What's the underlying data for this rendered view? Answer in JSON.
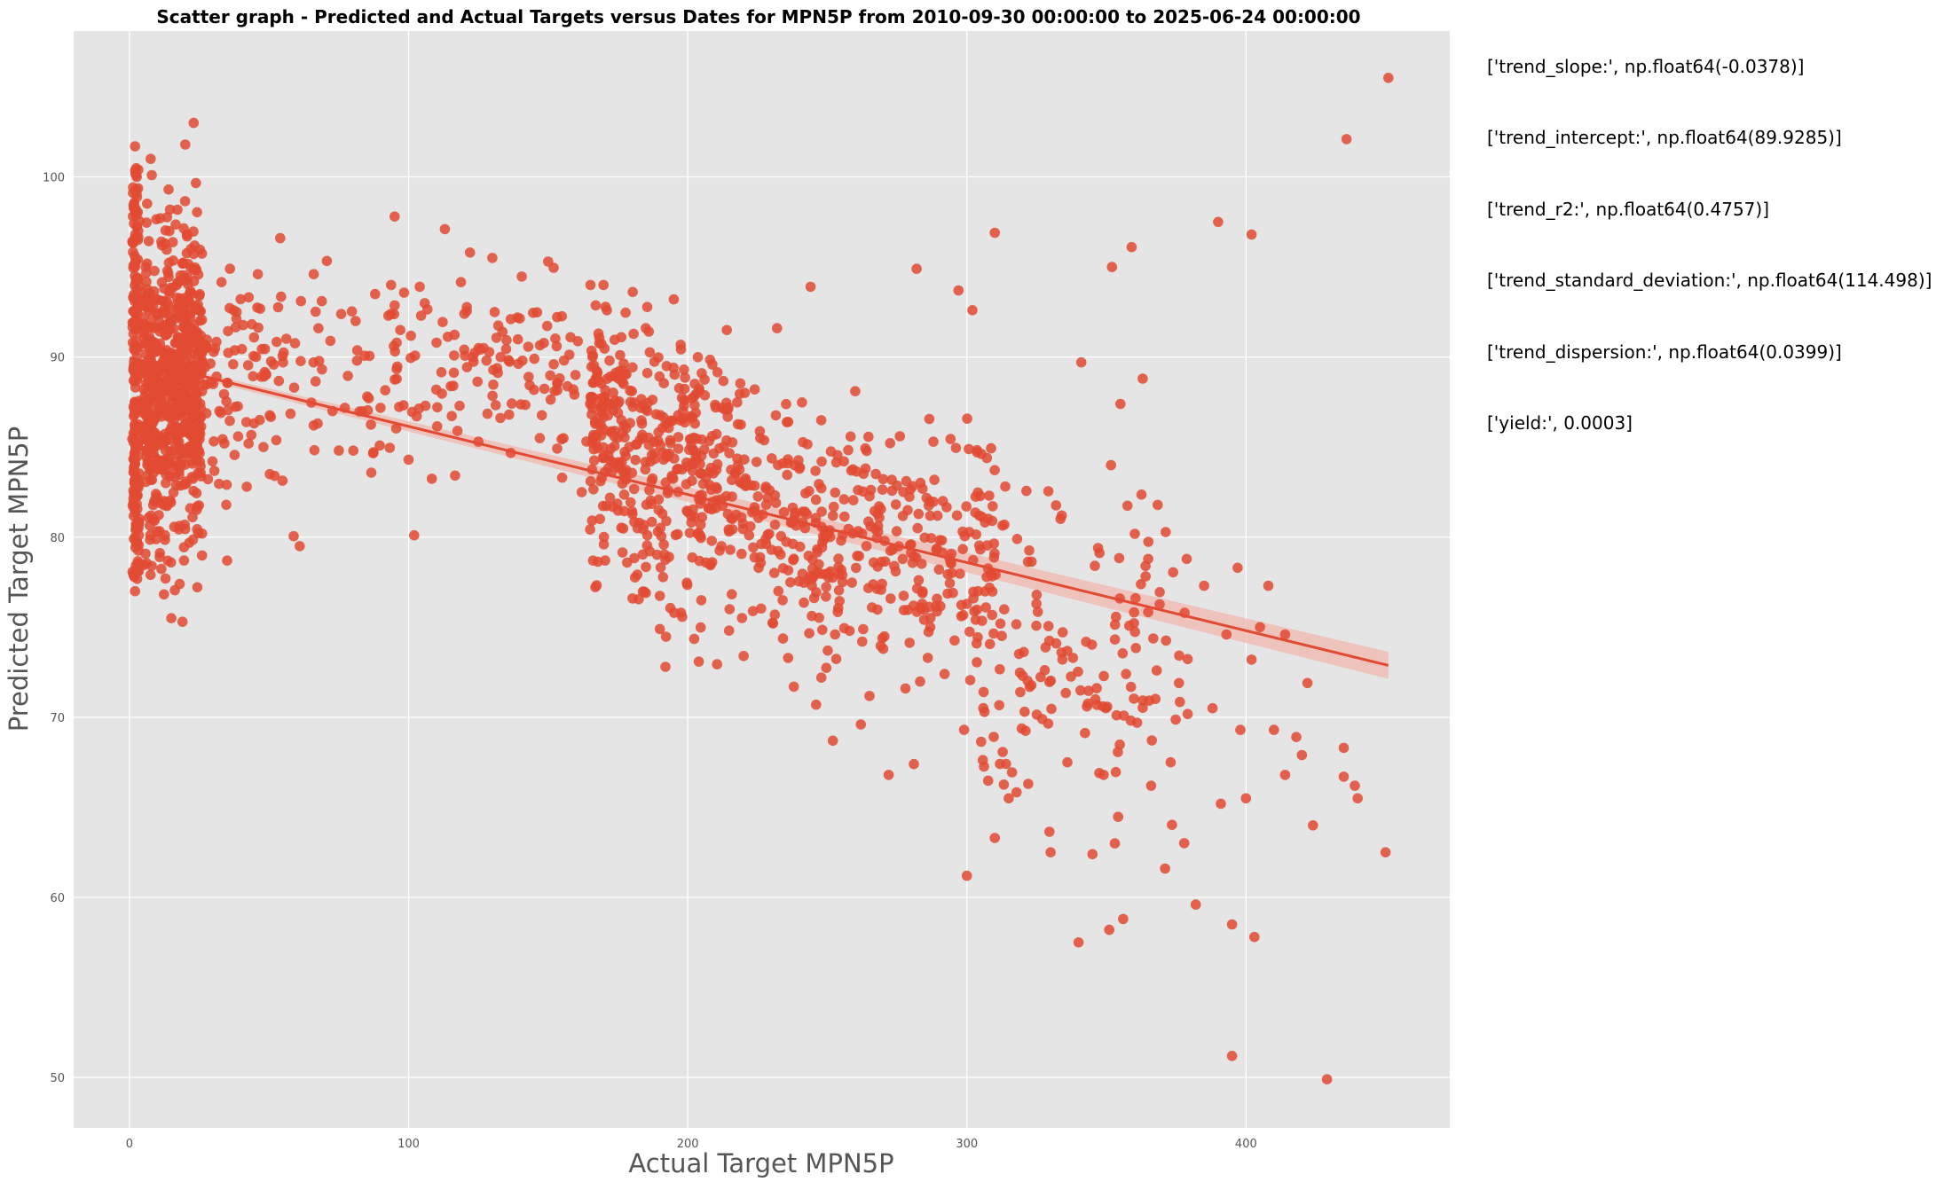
{
  "chart_data": {
    "type": "scatter",
    "title": "Scatter graph - Predicted and Actual Targets versus Dates for MPN5P from 2010-09-30 00:00:00 to 2025-06-24 00:00:00",
    "xlabel": "Actual Target MPN5P",
    "ylabel": "Predicted Target MPN5P",
    "xlim": [
      -20,
      473
    ],
    "ylim": [
      47.2,
      108.1
    ],
    "x_ticks": [
      0,
      100,
      200,
      300,
      400
    ],
    "y_ticks": [
      50,
      60,
      70,
      80,
      90,
      100
    ],
    "grid": true,
    "legend": "none",
    "colors": {
      "background": "#e5e5e5",
      "grid": "#ffffff",
      "points": "#e24a33",
      "trend": "#e24a33",
      "confidence_band": "#f0b7ae"
    },
    "trend_line": {
      "slope": -0.0378,
      "intercept": 89.9285,
      "x_range": [
        0,
        451
      ]
    },
    "series": [
      {
        "values_xy": [
          [
            2,
            77
          ],
          [
            2,
            80
          ],
          [
            2,
            83
          ],
          [
            2,
            86
          ],
          [
            2,
            89
          ],
          [
            2,
            92
          ],
          [
            2,
            95
          ],
          [
            2,
            98
          ],
          [
            2,
            101.7
          ],
          [
            3,
            78.5
          ],
          [
            3,
            84.5
          ],
          [
            3,
            90.5
          ],
          [
            3,
            96.5
          ],
          [
            8,
            78.4
          ],
          [
            8,
            100.1
          ],
          [
            11,
            97.7
          ],
          [
            13,
            83
          ],
          [
            14,
            99.3
          ],
          [
            15,
            75.5
          ],
          [
            16,
            88
          ],
          [
            17,
            94
          ],
          [
            18,
            77.4
          ],
          [
            19,
            75.3
          ],
          [
            20,
            101.8
          ],
          [
            22,
            96
          ],
          [
            23,
            103
          ],
          [
            25,
            93.4
          ],
          [
            26,
            80.2
          ],
          [
            30,
            88.5
          ],
          [
            34,
            85.2
          ],
          [
            35,
            78.7
          ],
          [
            36,
            94.9
          ],
          [
            42,
            82.8
          ],
          [
            46,
            94.6
          ],
          [
            48,
            85
          ],
          [
            52,
            83.4
          ],
          [
            54,
            96.6
          ],
          [
            55,
            89.7
          ],
          [
            59,
            88.3
          ],
          [
            61,
            79.5
          ],
          [
            66,
            86.2
          ],
          [
            66,
            94.6
          ],
          [
            72,
            90.9
          ],
          [
            81,
            92
          ],
          [
            88,
            93.5
          ],
          [
            95,
            97.8
          ],
          [
            97,
            91.5
          ],
          [
            100,
            84.3
          ],
          [
            102,
            80.1
          ],
          [
            104,
            93.9
          ],
          [
            110,
            90.8
          ],
          [
            113,
            97.1
          ],
          [
            116,
            88.4
          ],
          [
            120,
            92.4
          ],
          [
            122,
            95.8
          ],
          [
            125,
            85.3
          ],
          [
            130,
            95.5
          ],
          [
            133,
            90
          ],
          [
            136,
            86.8
          ],
          [
            139,
            92.2
          ],
          [
            143,
            88.9
          ],
          [
            147,
            85.5
          ],
          [
            150,
            95.3
          ],
          [
            152,
            89.6
          ],
          [
            155,
            83.3
          ],
          [
            158,
            91.1
          ],
          [
            162,
            82.5
          ],
          [
            165,
            87.4
          ],
          [
            168,
            91.3
          ],
          [
            170,
            84.4
          ],
          [
            172,
            89.8
          ],
          [
            175,
            86.9
          ],
          [
            178,
            83.2
          ],
          [
            180,
            88.1
          ],
          [
            182,
            80.5
          ],
          [
            185,
            76.9
          ],
          [
            185,
            91.6
          ],
          [
            188,
            85.3
          ],
          [
            190,
            74.9
          ],
          [
            192,
            72.8
          ],
          [
            193,
            82.6
          ],
          [
            195,
            93.2
          ],
          [
            198,
            86.6
          ],
          [
            200,
            81.4
          ],
          [
            203,
            84.7
          ],
          [
            205,
            89.1
          ],
          [
            208,
            78.5
          ],
          [
            210,
            87.2
          ],
          [
            212,
            82.1
          ],
          [
            214,
            91.5
          ],
          [
            215,
            76
          ],
          [
            218,
            84
          ],
          [
            220,
            73.4
          ],
          [
            222,
            80.1
          ],
          [
            224,
            88.2
          ],
          [
            226,
            85.5
          ],
          [
            228,
            82.8
          ],
          [
            230,
            79.3
          ],
          [
            232,
            91.6
          ],
          [
            234,
            76.5
          ],
          [
            236,
            86.4
          ],
          [
            238,
            71.7
          ],
          [
            240,
            83.8
          ],
          [
            242,
            80.5
          ],
          [
            244,
            93.9
          ],
          [
            245,
            77.8
          ],
          [
            246,
            70.7
          ],
          [
            248,
            84.2
          ],
          [
            250,
            80.2
          ],
          [
            252,
            68.7
          ],
          [
            254,
            78.8
          ],
          [
            256,
            82.1
          ],
          [
            258,
            74.8
          ],
          [
            260,
            88.1
          ],
          [
            262,
            69.6
          ],
          [
            264,
            79.5
          ],
          [
            266,
            76.1
          ],
          [
            268,
            81.3
          ],
          [
            270,
            73.8
          ],
          [
            272,
            66.8
          ],
          [
            274,
            78.4
          ],
          [
            276,
            85.6
          ],
          [
            278,
            71.6
          ],
          [
            280,
            79.6
          ],
          [
            281,
            67.4
          ],
          [
            282,
            94.9
          ],
          [
            284,
            76.3
          ],
          [
            286,
            73.3
          ],
          [
            288,
            85.3
          ],
          [
            290,
            78.2
          ],
          [
            292,
            72.4
          ],
          [
            295,
            76.9
          ],
          [
            297,
            93.7
          ],
          [
            299,
            69.3
          ],
          [
            300,
            61.2
          ],
          [
            302,
            92.6
          ],
          [
            304,
            77
          ],
          [
            306,
            71.4
          ],
          [
            308,
            82.3
          ],
          [
            310,
            96.9
          ],
          [
            310,
            63.3
          ],
          [
            312,
            75.2
          ],
          [
            315,
            65.5
          ],
          [
            318,
            79.9
          ],
          [
            320,
            72.3
          ],
          [
            322,
            66.3
          ],
          [
            325,
            76.8
          ],
          [
            327,
            69.9
          ],
          [
            330,
            62.5
          ],
          [
            332,
            74.1
          ],
          [
            334,
            81.2
          ],
          [
            336,
            67.5
          ],
          [
            338,
            73.3
          ],
          [
            340,
            57.5
          ],
          [
            341,
            89.7
          ],
          [
            343,
            70.6
          ],
          [
            345,
            62.4
          ],
          [
            347,
            79.4
          ],
          [
            349,
            66.8
          ],
          [
            351,
            58.2
          ],
          [
            352,
            95
          ],
          [
            353,
            63
          ],
          [
            355,
            87.4
          ],
          [
            356,
            58.8
          ],
          [
            357,
            72.4
          ],
          [
            359,
            96.1
          ],
          [
            361,
            69.7
          ],
          [
            363,
            88.8
          ],
          [
            364,
            78.4
          ],
          [
            366,
            66.2
          ],
          [
            368,
            72.6
          ],
          [
            371,
            61.6
          ],
          [
            373,
            67.5
          ],
          [
            376,
            71.9
          ],
          [
            378,
            75.8
          ],
          [
            382,
            59.6
          ],
          [
            385,
            77.3
          ],
          [
            388,
            70.5
          ],
          [
            390,
            97.5
          ],
          [
            391,
            65.2
          ],
          [
            393,
            74.6
          ],
          [
            395,
            51.2
          ],
          [
            395,
            58.5
          ],
          [
            397,
            78.3
          ],
          [
            398,
            69.3
          ],
          [
            400,
            65.5
          ],
          [
            402,
            73.2
          ],
          [
            402,
            96.8
          ],
          [
            403,
            57.8
          ],
          [
            405,
            75
          ],
          [
            408,
            77.3
          ],
          [
            410,
            69.3
          ],
          [
            414,
            74.6
          ],
          [
            414,
            66.8
          ],
          [
            418,
            68.9
          ],
          [
            420,
            67.9
          ],
          [
            422,
            71.9
          ],
          [
            424,
            64
          ],
          [
            429,
            49.9
          ],
          [
            435,
            66.7
          ],
          [
            435,
            68.3
          ],
          [
            436,
            102.1
          ],
          [
            439,
            66.2
          ],
          [
            440,
            65.5
          ],
          [
            450,
            62.5
          ],
          [
            451,
            105.5
          ]
        ]
      }
    ],
    "annotations": [
      "['trend_slope:', np.float64(-0.0378)]",
      "['trend_intercept:', np.float64(89.9285)]",
      "['trend_r2:', np.float64(0.4757)]",
      "['trend_standard_deviation:', np.float64(114.498)]",
      "['trend_dispersion:', np.float64(0.0399)]",
      "['yield:', 0.0003]"
    ]
  }
}
